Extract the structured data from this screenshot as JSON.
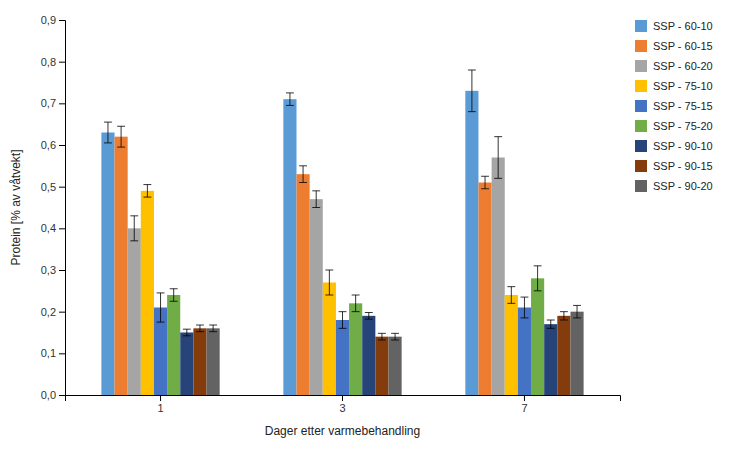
{
  "chart_data": {
    "type": "bar",
    "xlabel": "Dager etter varmebehandling",
    "ylabel": "Protein [% av våtvekt]",
    "categories": [
      "1",
      "3",
      "7"
    ],
    "series": [
      {
        "name": "SSP - 60-10",
        "color": "#5B9BD5",
        "values": [
          0.63,
          0.71,
          0.73
        ],
        "errors": [
          0.025,
          0.015,
          0.05
        ]
      },
      {
        "name": "SSP - 60-15",
        "color": "#ED7D31",
        "values": [
          0.62,
          0.53,
          0.51
        ],
        "errors": [
          0.025,
          0.02,
          0.015
        ]
      },
      {
        "name": "SSP - 60-20",
        "color": "#A5A5A5",
        "values": [
          0.4,
          0.47,
          0.57
        ],
        "errors": [
          0.03,
          0.02,
          0.05
        ]
      },
      {
        "name": "SSP - 75-10",
        "color": "#FFC000",
        "values": [
          0.49,
          0.27,
          0.24
        ],
        "errors": [
          0.015,
          0.03,
          0.02
        ]
      },
      {
        "name": "SSP - 75-15",
        "color": "#4472C4",
        "values": [
          0.21,
          0.18,
          0.21
        ],
        "errors": [
          0.035,
          0.02,
          0.025
        ]
      },
      {
        "name": "SSP - 75-20",
        "color": "#70AD47",
        "values": [
          0.24,
          0.22,
          0.28
        ],
        "errors": [
          0.015,
          0.02,
          0.03
        ]
      },
      {
        "name": "SSP - 90-10",
        "color": "#264478",
        "values": [
          0.15,
          0.19,
          0.17
        ],
        "errors": [
          0.008,
          0.008,
          0.01
        ]
      },
      {
        "name": "SSP - 90-15",
        "color": "#843C0C",
        "values": [
          0.16,
          0.14,
          0.19
        ],
        "errors": [
          0.008,
          0.008,
          0.01
        ]
      },
      {
        "name": "SSP - 90-20",
        "color": "#636363",
        "values": [
          0.16,
          0.14,
          0.2
        ],
        "errors": [
          0.008,
          0.008,
          0.015
        ]
      }
    ],
    "ylim": [
      0,
      0.9
    ],
    "yticks": [
      {
        "value": 0.0,
        "label": "0,0"
      },
      {
        "value": 0.1,
        "label": "0,1"
      },
      {
        "value": 0.2,
        "label": "0,2"
      },
      {
        "value": 0.3,
        "label": "0,3"
      },
      {
        "value": 0.4,
        "label": "0,4"
      },
      {
        "value": 0.5,
        "label": "0,5"
      },
      {
        "value": 0.6,
        "label": "0,6"
      },
      {
        "value": 0.7,
        "label": "0,7"
      },
      {
        "value": 0.8,
        "label": "0,8"
      },
      {
        "value": 0.9,
        "label": "0,9"
      }
    ],
    "grid": false,
    "legend": "right"
  }
}
